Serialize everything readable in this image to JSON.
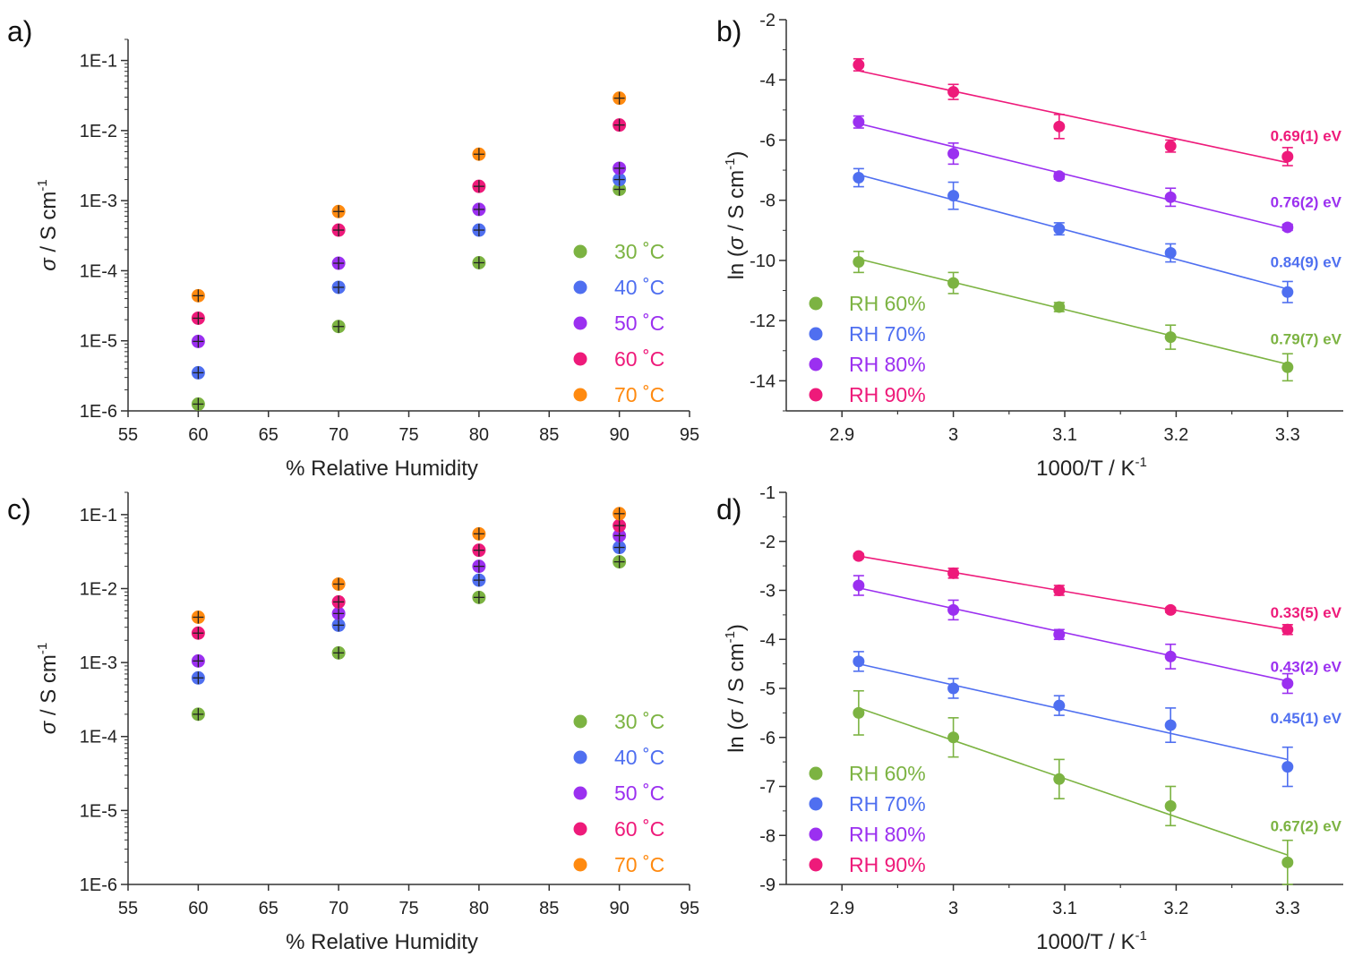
{
  "colors": {
    "c30": "#7cb342",
    "c40": "#4f6ff0",
    "c50": "#9b30f0",
    "c60": "#ee1a7a",
    "c70": "#ff8a10"
  },
  "chart_data": [
    {
      "panel": "a)",
      "type": "scatter",
      "y_scale": "log",
      "xlabel": "% Relative Humidity",
      "ylabel": "σ / S cm",
      "ylabel_sup": "-1",
      "xlim": [
        55,
        95
      ],
      "ylim": [
        1e-06,
        0.2
      ],
      "xticks": [
        55,
        60,
        65,
        70,
        75,
        80,
        85,
        90,
        95
      ],
      "yticks": [
        {
          "v": 1e-06,
          "label": "1E-6"
        },
        {
          "v": 1e-05,
          "label": "1E-5"
        },
        {
          "v": 0.0001,
          "label": "1E-4"
        },
        {
          "v": 0.001,
          "label": "1E-3"
        },
        {
          "v": 0.01,
          "label": "1E-2"
        },
        {
          "v": 0.1,
          "label": "1E-1"
        }
      ],
      "legend_position": "bottom-right",
      "x": [
        60,
        70,
        80,
        90
      ],
      "series": [
        {
          "name": "30 ˚C",
          "color_key": "c30",
          "values": [
            1.25e-06,
            1.6e-05,
            0.00013,
            0.00145
          ]
        },
        {
          "name": "40 ˚C",
          "color_key": "c40",
          "values": [
            3.5e-06,
            5.8e-05,
            0.00038,
            0.002
          ]
        },
        {
          "name": "50 ˚C",
          "color_key": "c50",
          "values": [
            9.8e-06,
            0.000128,
            0.00075,
            0.0029
          ]
        },
        {
          "name": "60 ˚C",
          "color_key": "c60",
          "values": [
            2.1e-05,
            0.00038,
            0.0016,
            0.012
          ]
        },
        {
          "name": "70 ˚C",
          "color_key": "c70",
          "values": [
            4.4e-05,
            0.0007,
            0.0046,
            0.029
          ]
        }
      ]
    },
    {
      "panel": "b)",
      "type": "scatter",
      "xlabel": "1000/T / K",
      "xlabel_sup": "-1",
      "ylabel": "ln (σ / S cm",
      "ylabel_sup": "-1",
      "ylabel_close": ")",
      "xlim": [
        2.85,
        3.35
      ],
      "ylim": [
        -15,
        -2
      ],
      "xticks": [
        2.9,
        3,
        3.1,
        3.2,
        3.3
      ],
      "yticks": [
        -14,
        -12,
        -10,
        -8,
        -6,
        -4,
        -2
      ],
      "legend_position": "bottom-left",
      "x": [
        2.915,
        3.0,
        3.095,
        3.195,
        3.3
      ],
      "series": [
        {
          "name": "RH 60%",
          "color_key": "c30",
          "values": [
            -10.05,
            -10.75,
            -11.55,
            -12.55,
            -13.55
          ],
          "err": [
            0.35,
            0.35,
            0.15,
            0.4,
            0.45
          ],
          "fit": [
            -9.95,
            -13.45
          ],
          "ea": "0.79(7) eV",
          "ea_y": -12.6
        },
        {
          "name": "RH 70%",
          "color_key": "c40",
          "values": [
            -7.25,
            -7.85,
            -8.95,
            -9.75,
            -11.05
          ],
          "err": [
            0.3,
            0.45,
            0.2,
            0.3,
            0.35
          ],
          "fit": [
            -7.15,
            -10.95
          ],
          "ea": "0.84(9) eV",
          "ea_y": -10.05
        },
        {
          "name": "RH 80%",
          "color_key": "c50",
          "values": [
            -5.4,
            -6.45,
            -7.2,
            -7.9,
            -8.9
          ],
          "err": [
            0.2,
            0.35,
            0.1,
            0.3,
            0.1
          ],
          "fit": [
            -5.45,
            -8.95
          ],
          "ea": "0.76(2) eV",
          "ea_y": -8.05
        },
        {
          "name": "RH 90%",
          "color_key": "c60",
          "values": [
            -3.5,
            -4.4,
            -5.55,
            -6.2,
            -6.55
          ],
          "err": [
            0.2,
            0.25,
            0.4,
            0.2,
            0.3
          ],
          "fit": [
            -3.7,
            -6.75
          ],
          "ea": "0.69(1) eV",
          "ea_y": -5.85
        }
      ]
    },
    {
      "panel": "c)",
      "type": "scatter",
      "y_scale": "log",
      "xlabel": "% Relative Humidity",
      "ylabel": "σ / S cm",
      "ylabel_sup": "-1",
      "xlim": [
        55,
        95
      ],
      "ylim": [
        1e-06,
        0.2
      ],
      "xticks": [
        55,
        60,
        65,
        70,
        75,
        80,
        85,
        90,
        95
      ],
      "yticks": [
        {
          "v": 1e-06,
          "label": "1E-6"
        },
        {
          "v": 1e-05,
          "label": "1E-5"
        },
        {
          "v": 0.0001,
          "label": "1E-4"
        },
        {
          "v": 0.001,
          "label": "1E-3"
        },
        {
          "v": 0.01,
          "label": "1E-2"
        },
        {
          "v": 0.1,
          "label": "1E-1"
        }
      ],
      "legend_position": "bottom-right",
      "x": [
        60,
        70,
        80,
        90
      ],
      "series": [
        {
          "name": "30 ˚C",
          "color_key": "c30",
          "values": [
            0.0002,
            0.00135,
            0.0076,
            0.023
          ]
        },
        {
          "name": "40 ˚C",
          "color_key": "c40",
          "values": [
            0.00062,
            0.0032,
            0.013,
            0.036
          ]
        },
        {
          "name": "50 ˚C",
          "color_key": "c50",
          "values": [
            0.00105,
            0.0046,
            0.02,
            0.052
          ]
        },
        {
          "name": "60 ˚C",
          "color_key": "c60",
          "values": [
            0.0025,
            0.0066,
            0.033,
            0.071
          ]
        },
        {
          "name": "70 ˚C",
          "color_key": "c70",
          "values": [
            0.0041,
            0.0115,
            0.055,
            0.103
          ]
        }
      ]
    },
    {
      "panel": "d)",
      "type": "scatter",
      "xlabel": "1000/T / K",
      "xlabel_sup": "-1",
      "ylabel": "ln (σ / S cm",
      "ylabel_sup": "-1",
      "ylabel_close": ")",
      "xlim": [
        2.85,
        3.35
      ],
      "ylim": [
        -9,
        -1
      ],
      "xticks": [
        2.9,
        3,
        3.1,
        3.2,
        3.3
      ],
      "yticks": [
        -9,
        -8,
        -7,
        -6,
        -5,
        -4,
        -3,
        -2,
        -1
      ],
      "legend_position": "bottom-left",
      "x": [
        2.915,
        3.0,
        3.095,
        3.195,
        3.3
      ],
      "series": [
        {
          "name": "RH 60%",
          "color_key": "c30",
          "values": [
            -5.5,
            -6.0,
            -6.85,
            -7.4,
            -8.55
          ],
          "err": [
            0.45,
            0.4,
            0.4,
            0.4,
            0.45
          ],
          "fit": [
            -5.4,
            -8.4
          ],
          "ea": "0.67(2) eV",
          "ea_y": -7.8
        },
        {
          "name": "RH 70%",
          "color_key": "c40",
          "values": [
            -4.45,
            -5.0,
            -5.35,
            -5.75,
            -6.6
          ],
          "err": [
            0.2,
            0.2,
            0.2,
            0.35,
            0.4
          ],
          "fit": [
            -4.5,
            -6.45
          ],
          "ea": "0.45(1) eV",
          "ea_y": -5.6
        },
        {
          "name": "RH 80%",
          "color_key": "c50",
          "values": [
            -2.9,
            -3.4,
            -3.9,
            -4.35,
            -4.9
          ],
          "err": [
            0.2,
            0.2,
            0.1,
            0.25,
            0.2
          ],
          "fit": [
            -2.95,
            -4.85
          ],
          "ea": "0.43(2) eV",
          "ea_y": -4.55
        },
        {
          "name": "RH 90%",
          "color_key": "c60",
          "values": [
            -2.3,
            -2.65,
            -3.0,
            -3.4,
            -3.8
          ],
          "err": [
            0.05,
            0.1,
            0.1,
            0.05,
            0.1
          ],
          "fit": [
            -2.3,
            -3.8
          ],
          "ea": "0.33(5) eV",
          "ea_y": -3.45
        }
      ]
    }
  ]
}
